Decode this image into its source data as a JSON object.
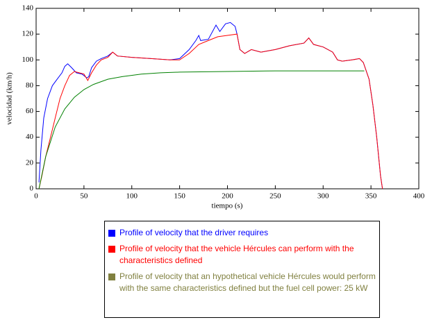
{
  "chart_data": {
    "type": "line",
    "xlabel": "tiempo (s)",
    "ylabel": "velocidad (km/h)",
    "xlim": [
      0,
      400
    ],
    "xticks": [
      0,
      50,
      100,
      150,
      200,
      250,
      300,
      350,
      400
    ],
    "ylim": [
      0,
      140
    ],
    "yticks": [
      0,
      20,
      40,
      60,
      80,
      100,
      120,
      140
    ],
    "series": [
      {
        "name": "Profile of velocity that the driver requires",
        "color": "#0000ff",
        "x": [
          3,
          5,
          8,
          12,
          17,
          22,
          27,
          30,
          33,
          37,
          42,
          48,
          53,
          55,
          58,
          63,
          68,
          75,
          80,
          85,
          100,
          120,
          140,
          150,
          160,
          167,
          170,
          172,
          180,
          188,
          192,
          198,
          203,
          208,
          210,
          213,
          218,
          225,
          235,
          250,
          265,
          280,
          285,
          290,
          300,
          310,
          315,
          320,
          330,
          338,
          342,
          348,
          352,
          356,
          360,
          362
        ],
        "values": [
          5,
          30,
          55,
          70,
          80,
          85,
          90,
          95,
          97,
          94,
          90,
          89,
          86,
          87,
          94,
          99,
          101,
          103,
          106,
          103,
          102,
          101,
          100,
          101,
          108,
          115,
          119,
          115,
          116,
          127,
          122,
          128,
          129,
          126,
          120,
          108,
          105,
          108,
          106,
          108,
          111,
          113,
          117,
          112,
          110,
          106,
          100,
          99,
          100,
          101,
          98,
          85,
          65,
          40,
          10,
          0
        ]
      },
      {
        "name": "Profile of velocity that the vehicle Hércules can perform with the characteristics defined",
        "color": "#ff0000",
        "x": [
          3,
          6,
          10,
          15,
          20,
          25,
          30,
          35,
          40,
          45,
          50,
          54,
          58,
          63,
          68,
          75,
          80,
          85,
          100,
          120,
          140,
          150,
          160,
          170,
          180,
          190,
          200,
          210,
          213,
          218,
          225,
          235,
          250,
          265,
          280,
          285,
          290,
          300,
          310,
          315,
          320,
          330,
          338,
          342,
          348,
          352,
          356,
          360,
          362
        ],
        "values": [
          0,
          10,
          25,
          40,
          55,
          70,
          80,
          88,
          91,
          90,
          89,
          84,
          90,
          96,
          100,
          102,
          106,
          103,
          102,
          101,
          100,
          100,
          105,
          112,
          115,
          118,
          119,
          120,
          108,
          105,
          108,
          106,
          108,
          111,
          113,
          117,
          112,
          110,
          106,
          100,
          99,
          100,
          101,
          98,
          85,
          65,
          40,
          10,
          0
        ]
      },
      {
        "name": "Profile of velocity that an hypothetical vehicle Hércules would perform with the same characteristics defined but the fuel cell power: 25 kW",
        "color": "#808040",
        "line_color": "#008000",
        "x": [
          3,
          10,
          20,
          30,
          40,
          50,
          60,
          75,
          90,
          110,
          130,
          150,
          200,
          250,
          300,
          343
        ],
        "values": [
          0,
          25,
          48,
          62,
          71,
          77,
          81,
          85,
          87,
          89,
          90,
          90.5,
          91,
          91.5,
          91.5,
          91.5
        ]
      }
    ]
  }
}
